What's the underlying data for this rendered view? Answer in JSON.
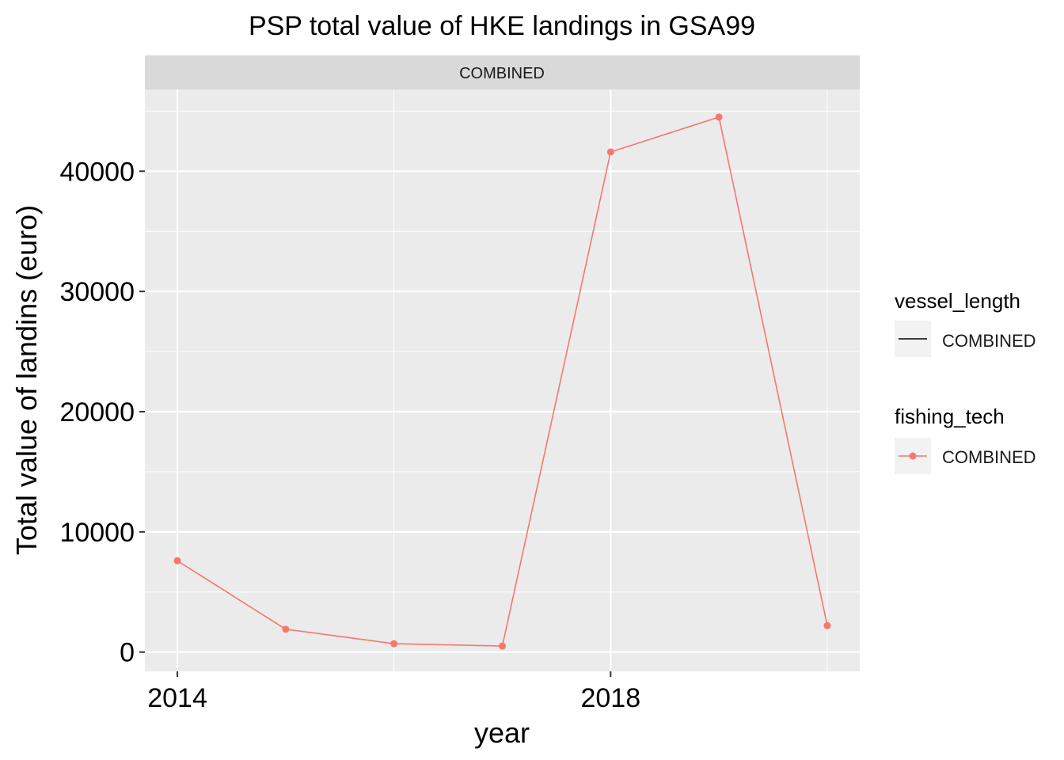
{
  "chart_data": {
    "type": "line",
    "title": "PSP total value of HKE landings in GSA99",
    "facet_label": "COMBINED",
    "xlabel": "year",
    "ylabel": "Total value of landins (euro)",
    "x_ticks": [
      2014,
      2018
    ],
    "y_ticks": [
      0,
      10000,
      20000,
      30000,
      40000
    ],
    "xlim": [
      2013.7,
      2020.3
    ],
    "ylim": [
      -1600,
      46800
    ],
    "grid": true,
    "legend_position": "right",
    "series": [
      {
        "color": "#F8766D",
        "x": [
          2014,
          2015,
          2016,
          2017,
          2018,
          2019,
          2020
        ],
        "values": [
          7600,
          1900,
          700,
          500,
          41600,
          44500,
          2200
        ]
      }
    ],
    "legends": [
      {
        "title": "vessel_length",
        "entries": [
          {
            "label": "COMBINED",
            "symbol": "line",
            "color": "#000000"
          }
        ]
      },
      {
        "title": "fishing_tech",
        "entries": [
          {
            "label": "COMBINED",
            "symbol": "line-point",
            "color": "#F8766D"
          }
        ]
      }
    ]
  }
}
